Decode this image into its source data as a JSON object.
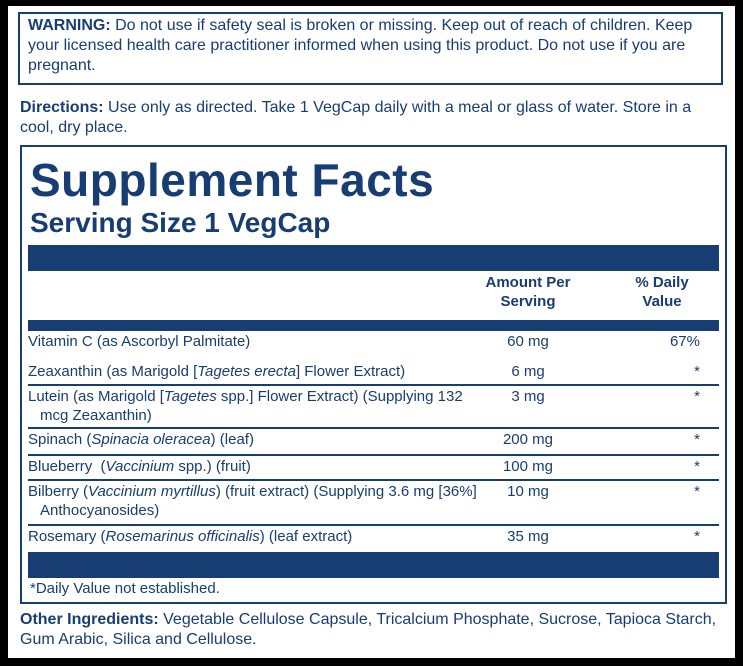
{
  "warning": {
    "label": "WARNING:",
    "text": "Do not use if safety seal is broken or missing. Keep out of reach of children. Keep your licensed health care practitioner informed when using this product. Do not use if you are pregnant."
  },
  "directions": {
    "label": "Directions:",
    "text": "Use only as directed. Take 1 VegCap daily with a meal or glass of water. Store in a cool, dry place."
  },
  "facts": {
    "title": "Supplement Facts",
    "serving_size": "Serving Size 1 VegCap",
    "columns": [
      "Amount Per Serving",
      "% Daily Value"
    ],
    "rows": [
      {
        "name": [
          "Vitamin C (as Ascorbyl Palmitate)"
        ],
        "amount": "60 mg",
        "daily_value": "67%"
      },
      {
        "name": [
          "Zeaxanthin (as Marigold [",
          "Tagetes erecta",
          "] Flower Extract)"
        ],
        "amount": "6 mg",
        "daily_value": "*"
      },
      {
        "name": [
          "Lutein (as Marigold [",
          "Tagetes",
          " spp.] Flower Extract) (Supplying 132 mcg Zeaxanthin)"
        ],
        "amount": "3 mg",
        "daily_value": "*"
      },
      {
        "name": [
          "Spinach (",
          "Spinacia oleracea",
          ") (leaf)"
        ],
        "amount": "200 mg",
        "daily_value": "*"
      },
      {
        "name": [
          "Blueberry  (",
          "Vaccinium",
          " spp.) (fruit)"
        ],
        "amount": "100 mg",
        "daily_value": "*"
      },
      {
        "name": [
          "Bilberry (",
          "Vaccinium myrtillus",
          ") (fruit extract) (Supplying 3.6 mg [36%] Anthocyanosides)"
        ],
        "amount": "10 mg",
        "daily_value": "*"
      },
      {
        "name": [
          "Rosemary (",
          "Rosemarinus officinalis",
          ") (leaf extract)"
        ],
        "amount": "35 mg",
        "daily_value": "*"
      }
    ],
    "footnote": "*Daily Value not established."
  },
  "other_ingredients": {
    "label": "Other Ingredients:",
    "text": "Vegetable Cellulose Capsule, Tricalcium Phosphate, Sucrose, Tapioca Starch, Gum Arabic, Silica and Cellulose."
  }
}
